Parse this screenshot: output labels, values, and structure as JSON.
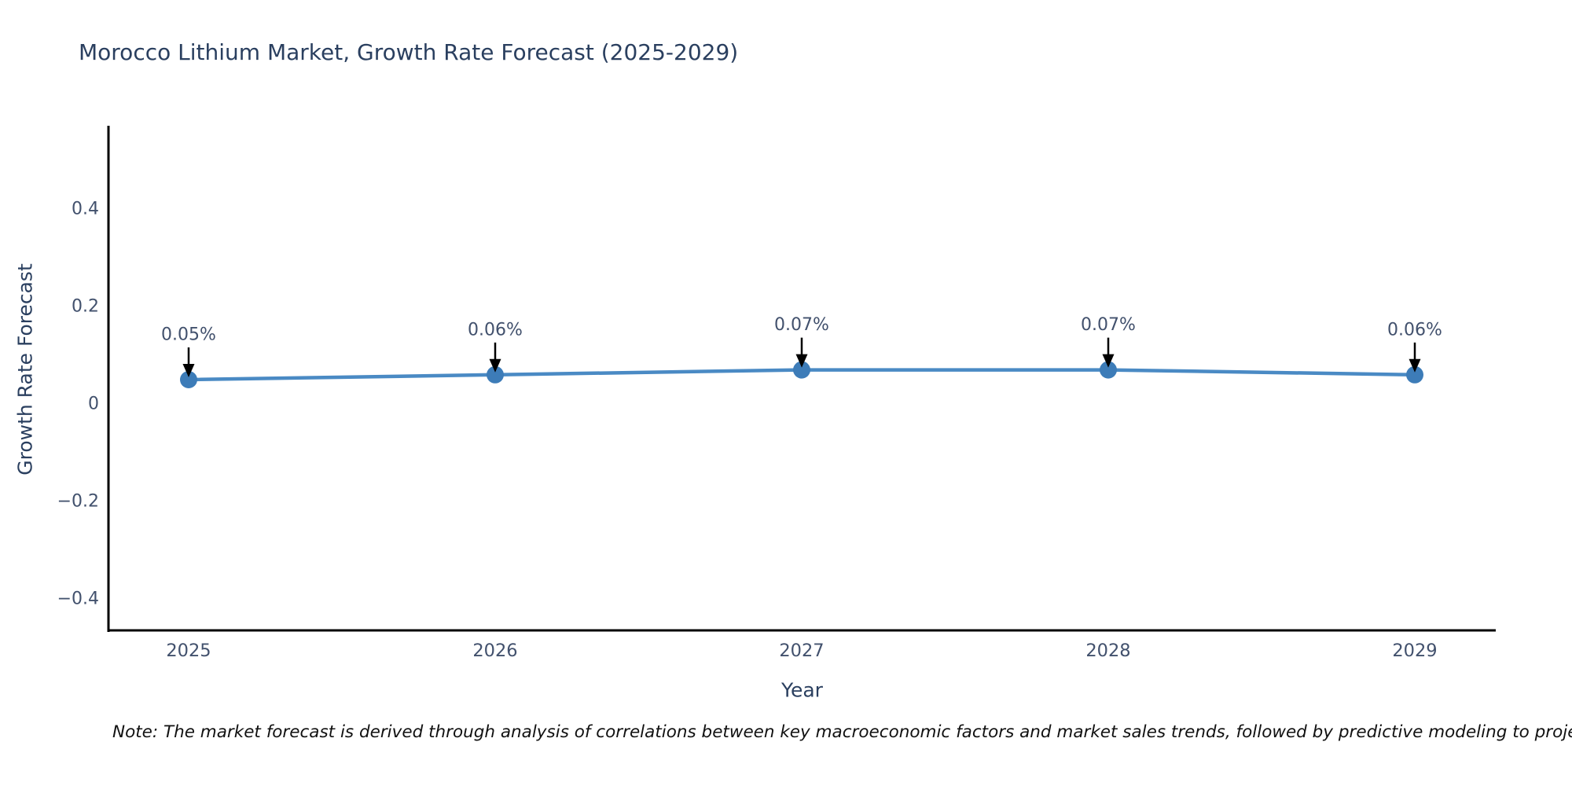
{
  "chart_data": {
    "type": "line",
    "title": "Morocco Lithium Market, Growth Rate Forecast (2025-2029)",
    "xlabel": "Year",
    "ylabel": "Growth Rate Forecast",
    "x": [
      2025,
      2026,
      2027,
      2028,
      2029
    ],
    "series": [
      {
        "name": "Growth Rate Forecast",
        "values": [
          0.05,
          0.06,
          0.07,
          0.07,
          0.06
        ]
      }
    ],
    "point_labels": [
      "0.05%",
      "0.06%",
      "0.07%",
      "0.07%",
      "0.06%"
    ],
    "yticks": [
      0.4,
      0.2,
      0,
      -0.2,
      -0.4
    ],
    "ytick_labels": [
      "0.4",
      "0.2",
      "0",
      "−0.2",
      "−0.4"
    ],
    "ylim": [
      -0.466,
      0.571
    ],
    "xlim_years": [
      2024.74,
      2029.26
    ],
    "grid": false,
    "legend": false,
    "colors": {
      "line": "#4a8ac4",
      "marker": "#3d7cb8",
      "axis": "#000000",
      "title_text": "#2a3f5f",
      "tick_text": "#42516d",
      "annotation_text": "#42516d",
      "arrow": "#000000",
      "background": "#ffffff"
    },
    "note": "Note: The market forecast is derived through analysis of correlations between key macroeconomic factors and market sales trends, followed by predictive modeling to project future sa"
  }
}
